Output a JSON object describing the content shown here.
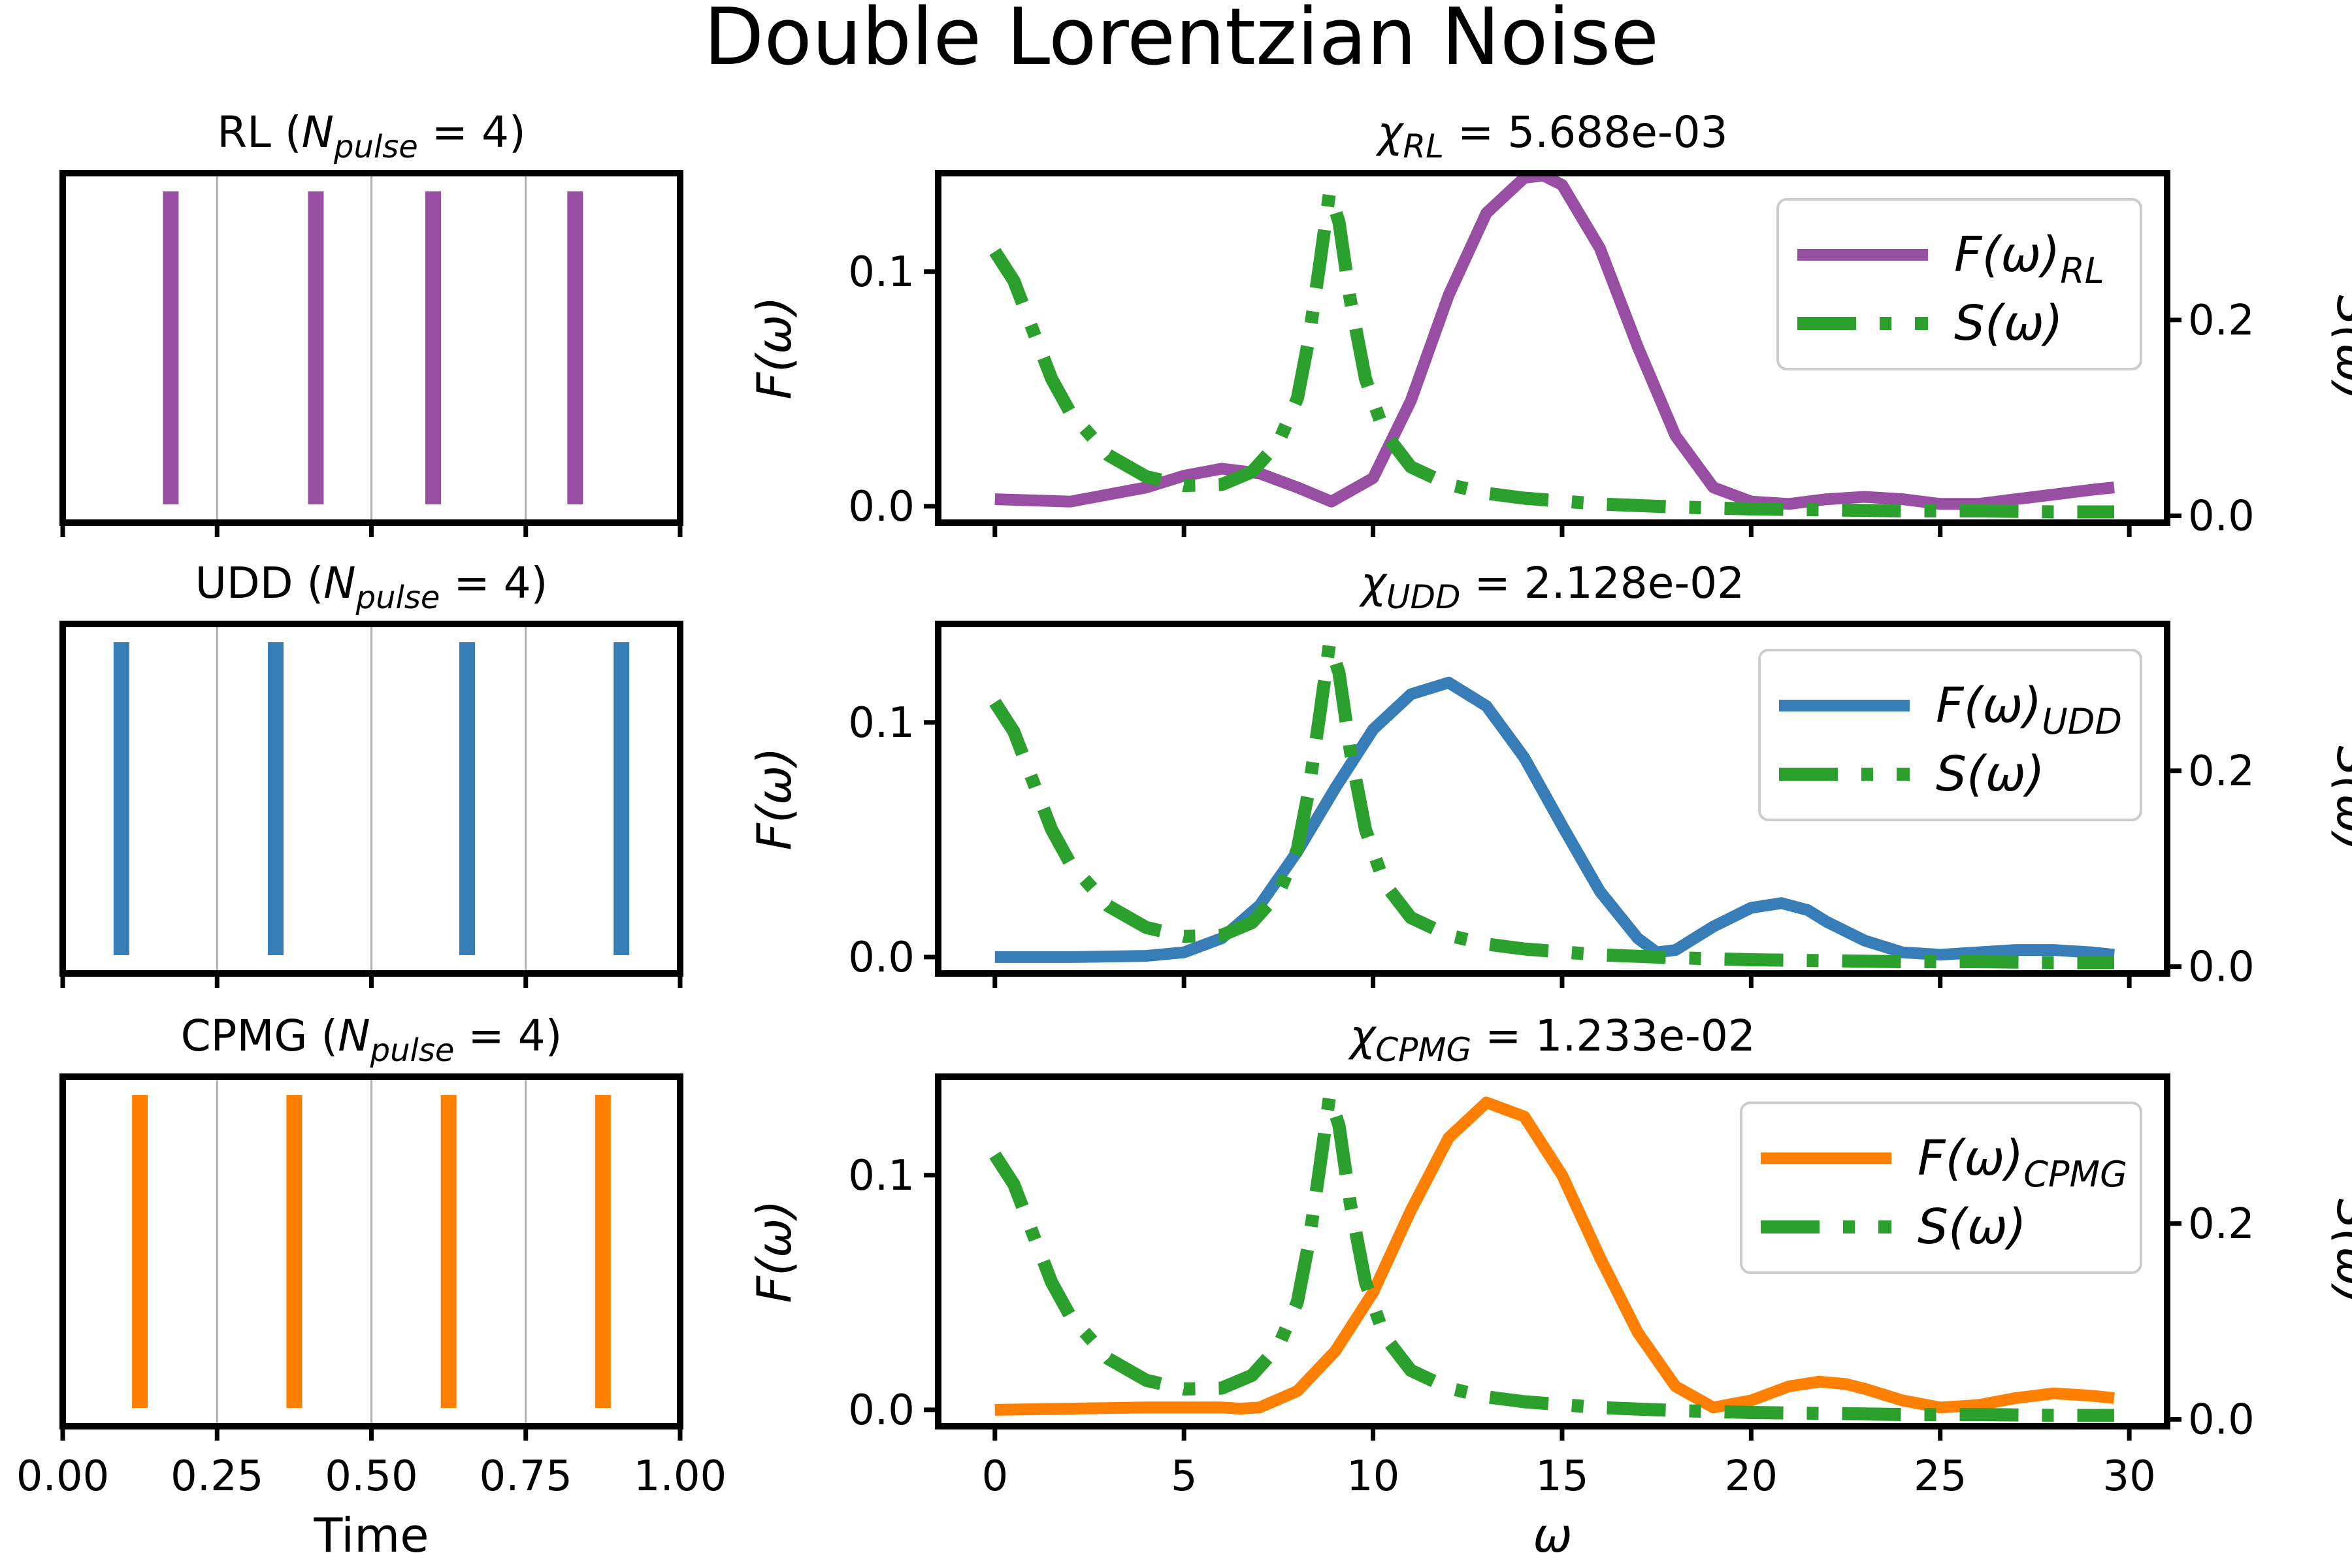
{
  "figure": {
    "title": "Double Lorentzian Noise",
    "colors": {
      "RL": "#984ea3",
      "UDD": "#377eb8",
      "CPMG": "#ff7f00",
      "noise": "#2ca02c"
    }
  },
  "chart_data": [
    {
      "type": "line",
      "panel": "pulse-sequence",
      "sequence": "RL",
      "title_main": "RL",
      "title_sub": "pulse",
      "n_pulse": 4,
      "xlim": [
        0,
        1
      ],
      "xticks": [
        "0.00",
        "0.25",
        "0.50",
        "0.75",
        "1.00"
      ],
      "xticks_labeled": false,
      "xlabel": "",
      "grid_x": [
        0.25,
        0.5,
        0.75
      ],
      "pulse_times": [
        0.175,
        0.41,
        0.6,
        0.83
      ],
      "color": "#984ea3"
    },
    {
      "type": "line",
      "panel": "filter-function",
      "sequence": "RL",
      "chi_sub": "RL",
      "chi_value": "5.688e-03",
      "xlim": [
        -1.5,
        31
      ],
      "xticks": [
        0,
        5,
        10,
        15,
        20,
        25,
        30
      ],
      "xticks_labeled": false,
      "xlabel": "",
      "ylim_left": [
        -0.007,
        0.142
      ],
      "yticks_left": [
        "0.0",
        "0.1"
      ],
      "ylabel_left": "F(ω)",
      "ylim_right": [
        -0.007,
        0.35
      ],
      "yticks_right": [
        "0.0",
        "0.2"
      ],
      "ylabel_right": "S(ω)",
      "legend_position": "upper-right",
      "legend": [
        {
          "label_main": "F(ω)",
          "label_sub": "RL",
          "style": "solid"
        },
        {
          "label_main": "S(ω)",
          "label_sub": "",
          "style": "dashdot"
        }
      ],
      "color": "#984ea3",
      "series": [
        {
          "role": "F",
          "x": [
            0,
            2,
            4,
            5,
            6,
            7,
            8,
            8.9,
            10,
            11,
            12,
            13,
            14,
            14.5,
            15,
            16,
            17,
            18,
            19,
            20,
            21,
            22,
            23,
            24,
            25,
            26,
            27,
            28,
            29,
            29.6
          ],
          "y": [
            0.003,
            0.002,
            0.008,
            0.013,
            0.016,
            0.014,
            0.008,
            0.002,
            0.012,
            0.045,
            0.09,
            0.125,
            0.14,
            0.141,
            0.137,
            0.11,
            0.068,
            0.03,
            0.008,
            0.002,
            0.001,
            0.003,
            0.004,
            0.003,
            0.001,
            0.001,
            0.003,
            0.005,
            0.007,
            0.008
          ]
        },
        {
          "role": "S",
          "x": [
            0,
            0.5,
            1,
            1.5,
            2,
            3,
            4,
            5,
            6,
            6.8,
            7.5,
            8,
            8.3,
            8.6,
            8.85,
            9.1,
            9.4,
            9.8,
            10.3,
            11,
            12,
            13,
            14,
            16,
            18,
            20,
            22,
            24,
            26,
            28,
            29.6
          ],
          "y": [
            0.27,
            0.24,
            0.19,
            0.14,
            0.105,
            0.062,
            0.04,
            0.031,
            0.032,
            0.045,
            0.075,
            0.12,
            0.18,
            0.26,
            0.33,
            0.3,
            0.22,
            0.14,
            0.085,
            0.05,
            0.032,
            0.023,
            0.018,
            0.012,
            0.009,
            0.007,
            0.006,
            0.005,
            0.005,
            0.004,
            0.004
          ]
        }
      ]
    },
    {
      "type": "line",
      "panel": "pulse-sequence",
      "sequence": "UDD",
      "title_main": "UDD",
      "title_sub": "pulse",
      "n_pulse": 4,
      "xlim": [
        0,
        1
      ],
      "xticks": [
        "0.00",
        "0.25",
        "0.50",
        "0.75",
        "1.00"
      ],
      "xticks_labeled": false,
      "xlabel": "",
      "grid_x": [
        0.25,
        0.5,
        0.75
      ],
      "pulse_times": [
        0.095,
        0.345,
        0.655,
        0.905
      ],
      "color": "#377eb8"
    },
    {
      "type": "line",
      "panel": "filter-function",
      "sequence": "UDD",
      "chi_sub": "UDD",
      "chi_value": "2.128e-02",
      "xlim": [
        -1.5,
        31
      ],
      "xticks": [
        0,
        5,
        10,
        15,
        20,
        25,
        30
      ],
      "xticks_labeled": false,
      "xlabel": "",
      "ylim_left": [
        -0.007,
        0.142
      ],
      "yticks_left": [
        "0.0",
        "0.1"
      ],
      "ylabel_left": "F(ω)",
      "ylim_right": [
        -0.007,
        0.35
      ],
      "yticks_right": [
        "0.0",
        "0.2"
      ],
      "ylabel_right": "S(ω)",
      "legend_position": "upper-right",
      "legend": [
        {
          "label_main": "F(ω)",
          "label_sub": "UDD",
          "style": "solid"
        },
        {
          "label_main": "S(ω)",
          "label_sub": "",
          "style": "dashdot"
        }
      ],
      "color": "#377eb8",
      "series": [
        {
          "role": "F",
          "x": [
            0,
            2,
            4,
            5,
            6,
            7,
            8,
            9,
            10,
            11,
            12,
            13,
            14,
            15,
            16,
            17,
            17.5,
            18,
            19,
            20,
            20.8,
            21.5,
            22,
            23,
            24,
            25,
            26,
            27,
            28,
            29,
            29.6
          ],
          "y": [
            0,
            0,
            0.0005,
            0.002,
            0.008,
            0.022,
            0.045,
            0.072,
            0.097,
            0.112,
            0.117,
            0.107,
            0.085,
            0.056,
            0.028,
            0.008,
            0.002,
            0.003,
            0.013,
            0.021,
            0.023,
            0.02,
            0.015,
            0.007,
            0.002,
            0.001,
            0.002,
            0.003,
            0.003,
            0.002,
            0.001
          ]
        },
        {
          "role": "S",
          "x": [
            0,
            0.5,
            1,
            1.5,
            2,
            3,
            4,
            5,
            6,
            6.8,
            7.5,
            8,
            8.3,
            8.6,
            8.85,
            9.1,
            9.4,
            9.8,
            10.3,
            11,
            12,
            13,
            14,
            16,
            18,
            20,
            22,
            24,
            26,
            28,
            29.6
          ],
          "y": [
            0.27,
            0.24,
            0.19,
            0.14,
            0.105,
            0.062,
            0.04,
            0.031,
            0.032,
            0.045,
            0.075,
            0.12,
            0.18,
            0.26,
            0.33,
            0.3,
            0.22,
            0.14,
            0.085,
            0.05,
            0.032,
            0.023,
            0.018,
            0.012,
            0.009,
            0.007,
            0.006,
            0.005,
            0.005,
            0.004,
            0.004
          ]
        }
      ]
    },
    {
      "type": "line",
      "panel": "pulse-sequence",
      "sequence": "CPMG",
      "title_main": "CPMG",
      "title_sub": "pulse",
      "n_pulse": 4,
      "xlim": [
        0,
        1
      ],
      "xticks": [
        "0.00",
        "0.25",
        "0.50",
        "0.75",
        "1.00"
      ],
      "xticks_labeled": true,
      "xlabel": "Time",
      "grid_x": [
        0.25,
        0.5,
        0.75
      ],
      "pulse_times": [
        0.125,
        0.375,
        0.625,
        0.875
      ],
      "color": "#ff7f00"
    },
    {
      "type": "line",
      "panel": "filter-function",
      "sequence": "CPMG",
      "chi_sub": "CPMG",
      "chi_value": "1.233e-02",
      "xlim": [
        -1.5,
        31
      ],
      "xticks": [
        0,
        5,
        10,
        15,
        20,
        25,
        30
      ],
      "xticks_labeled": true,
      "xlabel": "ω",
      "ylim_left": [
        -0.007,
        0.142
      ],
      "yticks_left": [
        "0.0",
        "0.1"
      ],
      "ylabel_left": "F(ω)",
      "ylim_right": [
        -0.007,
        0.35
      ],
      "yticks_right": [
        "0.0",
        "0.2"
      ],
      "ylabel_right": "S(ω)",
      "legend_position": "upper-right",
      "legend": [
        {
          "label_main": "F(ω)",
          "label_sub": "CPMG",
          "style": "solid"
        },
        {
          "label_main": "S(ω)",
          "label_sub": "",
          "style": "dashdot"
        }
      ],
      "color": "#ff7f00",
      "series": [
        {
          "role": "F",
          "x": [
            0,
            2,
            4,
            5,
            6,
            6.5,
            7,
            8,
            9,
            10,
            11,
            12,
            13,
            14,
            15,
            16,
            17,
            18,
            19,
            20,
            21,
            21.8,
            22.5,
            23,
            24,
            25,
            26,
            27,
            28,
            29,
            29.6
          ],
          "y": [
            0,
            0.0005,
            0.001,
            0.001,
            0.001,
            0.0005,
            0.001,
            0.008,
            0.025,
            0.05,
            0.085,
            0.116,
            0.131,
            0.125,
            0.1,
            0.065,
            0.033,
            0.01,
            0.001,
            0.004,
            0.01,
            0.012,
            0.011,
            0.009,
            0.004,
            0.001,
            0.002,
            0.005,
            0.007,
            0.006,
            0.005
          ]
        },
        {
          "role": "S",
          "x": [
            0,
            0.5,
            1,
            1.5,
            2,
            3,
            4,
            5,
            6,
            6.8,
            7.5,
            8,
            8.3,
            8.6,
            8.85,
            9.1,
            9.4,
            9.8,
            10.3,
            11,
            12,
            13,
            14,
            16,
            18,
            20,
            22,
            24,
            26,
            28,
            29.6
          ],
          "y": [
            0.27,
            0.24,
            0.19,
            0.14,
            0.105,
            0.062,
            0.04,
            0.031,
            0.032,
            0.045,
            0.075,
            0.12,
            0.18,
            0.26,
            0.33,
            0.3,
            0.22,
            0.14,
            0.085,
            0.05,
            0.032,
            0.023,
            0.018,
            0.012,
            0.009,
            0.007,
            0.006,
            0.005,
            0.005,
            0.004,
            0.004
          ]
        }
      ]
    }
  ]
}
